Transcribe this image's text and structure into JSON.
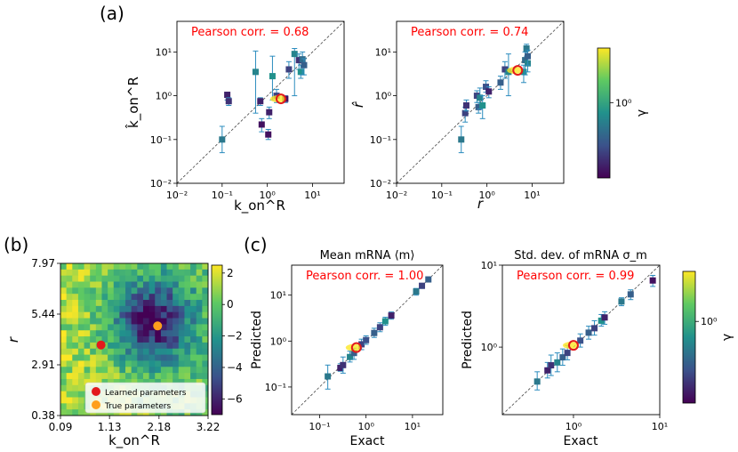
{
  "panel_labels": {
    "a": "(a)",
    "b": "(b)",
    "c": "(c)"
  },
  "chart_data": [
    {
      "type": "scatter",
      "panel": "a-left",
      "title": "",
      "xlabel": "k_on^R",
      "ylabel": "k̂_on^R",
      "xscale": "log",
      "yscale": "log",
      "xlim": [
        0.01,
        50
      ],
      "ylim": [
        0.01,
        50
      ],
      "xticks": [
        "10⁻²",
        "10⁻¹",
        "10⁰",
        "10¹"
      ],
      "yticks": [
        "10⁻²",
        "10⁻¹",
        "10⁰",
        "10¹"
      ],
      "annotation": "Pearson corr. = 0.68",
      "highlight": {
        "x": 2.0,
        "y": 0.85
      },
      "points": [
        {
          "x": 0.1,
          "y": 0.1,
          "lo": 0.05,
          "hi": 0.2,
          "c": 0.4
        },
        {
          "x": 0.13,
          "y": 1.05,
          "lo": 0.8,
          "hi": 1.2,
          "c": 0.1
        },
        {
          "x": 0.14,
          "y": 0.75,
          "lo": 0.6,
          "hi": 0.9,
          "c": 0.15
        },
        {
          "x": 0.55,
          "y": 3.5,
          "lo": 0.4,
          "hi": 10.5,
          "c": 0.45
        },
        {
          "x": 0.7,
          "y": 0.75,
          "lo": 0.6,
          "hi": 0.9,
          "c": 0.1
        },
        {
          "x": 0.75,
          "y": 0.22,
          "lo": 0.15,
          "hi": 0.3,
          "c": 0.05
        },
        {
          "x": 1.05,
          "y": 0.13,
          "lo": 0.1,
          "hi": 0.17,
          "c": 0.05
        },
        {
          "x": 1.1,
          "y": 0.42,
          "lo": 0.3,
          "hi": 0.55,
          "c": 0.1
        },
        {
          "x": 1.3,
          "y": 2.8,
          "lo": 0.8,
          "hi": 8.0,
          "c": 0.5
        },
        {
          "x": 1.6,
          "y": 1.0,
          "lo": 0.7,
          "hi": 1.4,
          "c": 0.2
        },
        {
          "x": 2.5,
          "y": 0.85,
          "lo": 0.7,
          "hi": 1.0,
          "c": 0.05
        },
        {
          "x": 3.0,
          "y": 4.0,
          "lo": 2.5,
          "hi": 6.0,
          "c": 0.2
        },
        {
          "x": 4.0,
          "y": 9.0,
          "lo": 1.0,
          "hi": 12.0,
          "c": 0.45
        },
        {
          "x": 5.0,
          "y": 6.5,
          "lo": 4.0,
          "hi": 9.0,
          "c": 0.15
        },
        {
          "x": 5.5,
          "y": 3.5,
          "lo": 2.5,
          "hi": 5.0,
          "c": 0.5
        },
        {
          "x": 6.0,
          "y": 6.8,
          "lo": 3.0,
          "hi": 10.0,
          "c": 0.35
        },
        {
          "x": 6.5,
          "y": 5.0,
          "lo": 3.0,
          "hi": 7.0,
          "c": 0.3
        }
      ]
    },
    {
      "type": "scatter",
      "panel": "a-right",
      "title": "",
      "xlabel": "r",
      "ylabel": "r̂",
      "xscale": "log",
      "yscale": "log",
      "xlim": [
        0.01,
        50
      ],
      "ylim": [
        0.01,
        50
      ],
      "xticks": [
        "10⁻²",
        "10⁻¹",
        "10⁰",
        "10¹"
      ],
      "yticks": [
        "10⁻²",
        "10⁻¹",
        "10⁰",
        "10¹"
      ],
      "annotation": "Pearson corr. = 0.74",
      "highlight": {
        "x": 4.8,
        "y": 3.8
      },
      "points": [
        {
          "x": 0.27,
          "y": 0.1,
          "lo": 0.05,
          "hi": 0.2,
          "c": 0.4
        },
        {
          "x": 0.33,
          "y": 0.4,
          "lo": 0.25,
          "hi": 0.55,
          "c": 0.2
        },
        {
          "x": 0.35,
          "y": 0.6,
          "lo": 0.45,
          "hi": 0.8,
          "c": 0.15
        },
        {
          "x": 0.6,
          "y": 1.0,
          "lo": 0.7,
          "hi": 1.3,
          "c": 0.2
        },
        {
          "x": 0.65,
          "y": 0.55,
          "lo": 0.4,
          "hi": 0.7,
          "c": 0.3
        },
        {
          "x": 0.7,
          "y": 0.9,
          "lo": 0.5,
          "hi": 1.5,
          "c": 0.45
        },
        {
          "x": 0.8,
          "y": 0.6,
          "lo": 0.3,
          "hi": 1.0,
          "c": 0.5
        },
        {
          "x": 0.95,
          "y": 1.6,
          "lo": 1.2,
          "hi": 2.2,
          "c": 0.25
        },
        {
          "x": 1.1,
          "y": 1.25,
          "lo": 0.9,
          "hi": 1.6,
          "c": 0.1
        },
        {
          "x": 2.0,
          "y": 2.0,
          "lo": 1.4,
          "hi": 2.8,
          "c": 0.3
        },
        {
          "x": 2.5,
          "y": 4.0,
          "lo": 2.5,
          "hi": 6.0,
          "c": 0.2
        },
        {
          "x": 3.0,
          "y": 3.5,
          "lo": 1.0,
          "hi": 9.0,
          "c": 0.45
        },
        {
          "x": 6.5,
          "y": 3.5,
          "lo": 2.0,
          "hi": 5.0,
          "c": 0.5
        },
        {
          "x": 7.0,
          "y": 6.5,
          "lo": 3.0,
          "hi": 10.0,
          "c": 0.35
        },
        {
          "x": 7.5,
          "y": 12.0,
          "lo": 8.0,
          "hi": 15.0,
          "c": 0.4
        },
        {
          "x": 8.0,
          "y": 5.5,
          "lo": 3.5,
          "hi": 8.0,
          "c": 0.45
        },
        {
          "x": 8.0,
          "y": 8.0,
          "lo": 5.0,
          "hi": 11.0,
          "c": 0.3
        }
      ]
    },
    {
      "type": "colorbar",
      "panel": "a-colorbar",
      "label": "γ",
      "ticks": [
        "10⁰"
      ]
    },
    {
      "type": "heatmap",
      "panel": "b",
      "xlabel": "k_on^R",
      "ylabel": "r",
      "xticks": [
        "0.09",
        "1.13",
        "2.18",
        "3.22"
      ],
      "yticks": [
        "7.97",
        "5.44",
        "2.91",
        "0.38"
      ],
      "colorbar_ticks": [
        "2",
        "0",
        "−2",
        "−4",
        "−6"
      ],
      "colorbar_range": [
        -7,
        2.5
      ],
      "learned": {
        "x": 0.95,
        "y": 3.9
      },
      "true": {
        "x": 2.15,
        "y": 4.85
      },
      "legend": [
        "Learned parameters",
        "True parameters"
      ],
      "legend_colors": [
        "#e31a1c",
        "#ff9f1c"
      ]
    },
    {
      "type": "scatter",
      "panel": "c-left",
      "title": "Mean mRNA ⟨m⟩",
      "xlabel": "Exact",
      "ylabel": "Predicted",
      "xscale": "log",
      "yscale": "log",
      "xlim": [
        0.025,
        45
      ],
      "ylim": [
        0.025,
        45
      ],
      "xticks": [
        "10⁻¹",
        "10⁰",
        "10¹"
      ],
      "yticks": [
        "10⁻¹",
        "10⁰",
        "10¹"
      ],
      "annotation": "Pearson corr. = 1.00",
      "highlight": {
        "x": 0.62,
        "y": 0.72
      },
      "points": [
        {
          "x": 0.15,
          "y": 0.17,
          "lo": 0.09,
          "hi": 0.3,
          "c": 0.4
        },
        {
          "x": 0.28,
          "y": 0.26,
          "lo": 0.22,
          "hi": 0.32,
          "c": 0.1
        },
        {
          "x": 0.32,
          "y": 0.3,
          "lo": 0.2,
          "hi": 0.45,
          "c": 0.15
        },
        {
          "x": 0.45,
          "y": 0.45,
          "lo": 0.35,
          "hi": 0.6,
          "c": 0.45
        },
        {
          "x": 0.55,
          "y": 0.55,
          "lo": 0.4,
          "hi": 0.7,
          "c": 0.3
        },
        {
          "x": 0.8,
          "y": 0.85,
          "lo": 0.65,
          "hi": 1.1,
          "c": 0.2
        },
        {
          "x": 1.0,
          "y": 1.05,
          "lo": 0.85,
          "hi": 1.3,
          "c": 0.25
        },
        {
          "x": 1.5,
          "y": 1.5,
          "lo": 1.2,
          "hi": 1.9,
          "c": 0.3
        },
        {
          "x": 2.0,
          "y": 2.0,
          "lo": 1.6,
          "hi": 2.5,
          "c": 0.2
        },
        {
          "x": 2.6,
          "y": 2.7,
          "lo": 2.2,
          "hi": 3.3,
          "c": 0.5
        },
        {
          "x": 3.5,
          "y": 3.6,
          "lo": 3.0,
          "hi": 4.3,
          "c": 0.1
        },
        {
          "x": 12,
          "y": 12,
          "lo": 10,
          "hi": 14,
          "c": 0.4
        },
        {
          "x": 16,
          "y": 16,
          "lo": 14,
          "hi": 18,
          "c": 0.2
        },
        {
          "x": 22,
          "y": 22,
          "lo": 20,
          "hi": 24,
          "c": 0.3
        }
      ]
    },
    {
      "type": "scatter",
      "panel": "c-right",
      "title": "Std. dev. of mRNA σ_m",
      "xlabel": "Exact",
      "ylabel": "Predicted",
      "xscale": "log",
      "yscale": "log",
      "xlim": [
        0.15,
        10
      ],
      "ylim": [
        0.15,
        10
      ],
      "xticks": [
        "10⁰",
        "10¹"
      ],
      "yticks": [
        "10⁰",
        "10¹"
      ],
      "annotation": "Pearson corr. = 0.99",
      "highlight": {
        "x": 1.0,
        "y": 1.05
      },
      "points": [
        {
          "x": 0.38,
          "y": 0.38,
          "lo": 0.3,
          "hi": 0.5,
          "c": 0.4
        },
        {
          "x": 0.5,
          "y": 0.52,
          "lo": 0.42,
          "hi": 0.65,
          "c": 0.1
        },
        {
          "x": 0.55,
          "y": 0.6,
          "lo": 0.45,
          "hi": 0.8,
          "c": 0.15
        },
        {
          "x": 0.65,
          "y": 0.65,
          "lo": 0.5,
          "hi": 0.85,
          "c": 0.45
        },
        {
          "x": 0.75,
          "y": 0.75,
          "lo": 0.6,
          "hi": 0.95,
          "c": 0.3
        },
        {
          "x": 0.85,
          "y": 0.85,
          "lo": 0.7,
          "hi": 1.05,
          "c": 0.2
        },
        {
          "x": 1.2,
          "y": 1.2,
          "lo": 1.0,
          "hi": 1.45,
          "c": 0.25
        },
        {
          "x": 1.5,
          "y": 1.5,
          "lo": 1.25,
          "hi": 1.8,
          "c": 0.3
        },
        {
          "x": 1.75,
          "y": 1.7,
          "lo": 1.4,
          "hi": 2.1,
          "c": 0.2
        },
        {
          "x": 2.1,
          "y": 2.1,
          "lo": 1.8,
          "hi": 2.5,
          "c": 0.5
        },
        {
          "x": 2.3,
          "y": 2.3,
          "lo": 1.9,
          "hi": 2.7,
          "c": 0.1
        },
        {
          "x": 3.6,
          "y": 3.6,
          "lo": 3.2,
          "hi": 4.0,
          "c": 0.4
        },
        {
          "x": 4.6,
          "y": 4.4,
          "lo": 3.8,
          "hi": 5.0,
          "c": 0.3
        },
        {
          "x": 8.3,
          "y": 6.5,
          "lo": 5.5,
          "hi": 7.5,
          "c": 0.05
        }
      ]
    },
    {
      "type": "colorbar",
      "panel": "c-colorbar",
      "label": "γ",
      "ticks": [
        "10⁰"
      ]
    }
  ]
}
